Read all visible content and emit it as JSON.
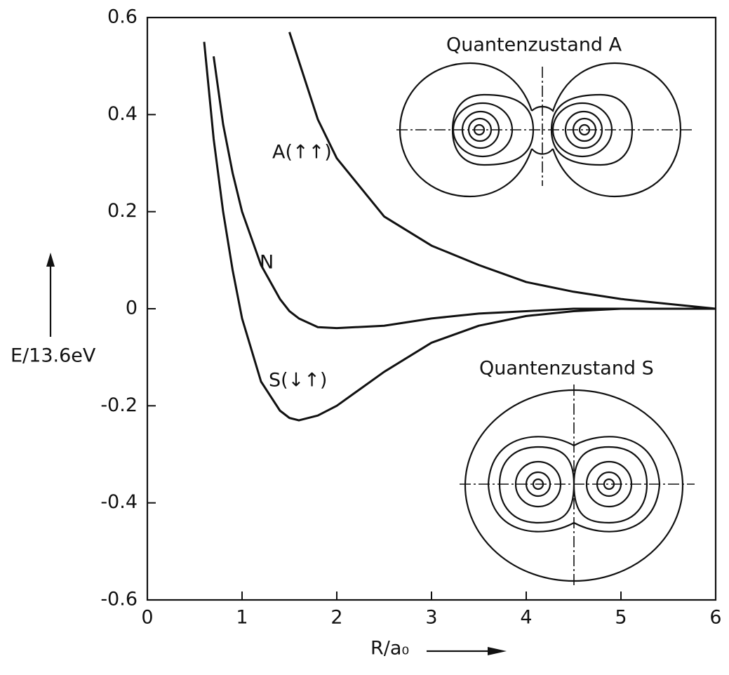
{
  "chart_data": {
    "type": "line",
    "ylabel": "E/13.6eV",
    "xlabel": "R/a₀",
    "annotations": [
      "A(↑↑)",
      "N",
      "S(↓↑)",
      "Quantenzustand A",
      "Quantenzustand S"
    ],
    "x": [
      0.6,
      0.7,
      0.8,
      0.9,
      1,
      1.2,
      1.4,
      1.5,
      1.6,
      1.8,
      2,
      2.5,
      3,
      3.5,
      4,
      4.5,
      5,
      5.5,
      6
    ],
    "series": [
      {
        "name": "A(↑↑)",
        "color": "#111111",
        "values": [
          null,
          null,
          null,
          null,
          null,
          null,
          null,
          0.57,
          0.51,
          0.39,
          0.31,
          0.19,
          0.13,
          0.09,
          0.055,
          0.035,
          0.02,
          0.01,
          0.0
        ]
      },
      {
        "name": "N",
        "color": "#111111",
        "values": [
          null,
          0.52,
          0.38,
          0.28,
          0.2,
          0.09,
          0.02,
          -0.005,
          -0.02,
          -0.038,
          -0.04,
          -0.035,
          -0.02,
          -0.01,
          -0.005,
          0.0,
          0.0,
          0.0,
          0.0
        ]
      },
      {
        "name": "S(↓↑)",
        "color": "#111111",
        "values": [
          0.55,
          0.35,
          0.2,
          0.08,
          -0.02,
          -0.15,
          -0.21,
          -0.225,
          -0.23,
          -0.22,
          -0.2,
          -0.13,
          -0.07,
          -0.035,
          -0.015,
          -0.005,
          0.0,
          0.0,
          0.0
        ]
      }
    ],
    "xlim": [
      0,
      6
    ],
    "xticks": [
      0,
      1,
      2,
      3,
      4,
      5,
      6
    ],
    "ylim": [
      -0.6,
      0.6
    ],
    "yticks": [
      -0.6,
      -0.4,
      -0.2,
      0,
      0.2,
      0.4,
      0.6
    ]
  }
}
